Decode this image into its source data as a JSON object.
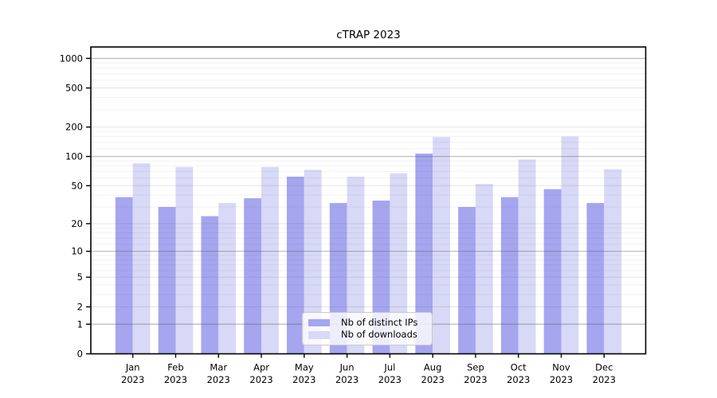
{
  "chart_data": {
    "type": "bar",
    "title": "cTRAP 2023",
    "categories": [
      "Jan",
      "Feb",
      "Mar",
      "Apr",
      "May",
      "Jun",
      "Jul",
      "Aug",
      "Sep",
      "Oct",
      "Nov",
      "Dec"
    ],
    "year": "2023",
    "series": [
      {
        "name": "Nb of distinct IPs",
        "color": "#a5a5f0",
        "values": [
          38,
          30,
          24,
          37,
          62,
          33,
          35,
          107,
          30,
          38,
          46,
          33
        ]
      },
      {
        "name": "Nb of downloads",
        "color": "#d8d8f7",
        "values": [
          85,
          78,
          33,
          78,
          73,
          62,
          67,
          158,
          52,
          93,
          160,
          74
        ]
      }
    ],
    "y_scale": "log10(1+v)",
    "ylim": [
      0,
      1300
    ],
    "y_ticks": [
      0,
      1,
      2,
      5,
      10,
      20,
      50,
      100,
      200,
      500,
      1000
    ],
    "y_decade_ticks": [
      1,
      10,
      100,
      1000
    ],
    "y_minor_ticks": [
      3,
      4,
      6,
      7,
      8,
      9,
      12,
      14,
      16,
      18,
      30,
      40,
      60,
      70,
      80,
      90,
      120,
      140,
      160,
      180,
      300,
      400,
      600,
      700,
      800,
      900
    ],
    "grid": true,
    "legend_position": "inside-bottom-center",
    "colors": {
      "spine": "#000000",
      "tick_label": "#000000",
      "grid_decade": "rgba(90,90,90,0.42)",
      "grid_major": "rgba(90,90,90,0.16)",
      "grid_minor": "rgba(90,90,90,0.08)"
    }
  }
}
